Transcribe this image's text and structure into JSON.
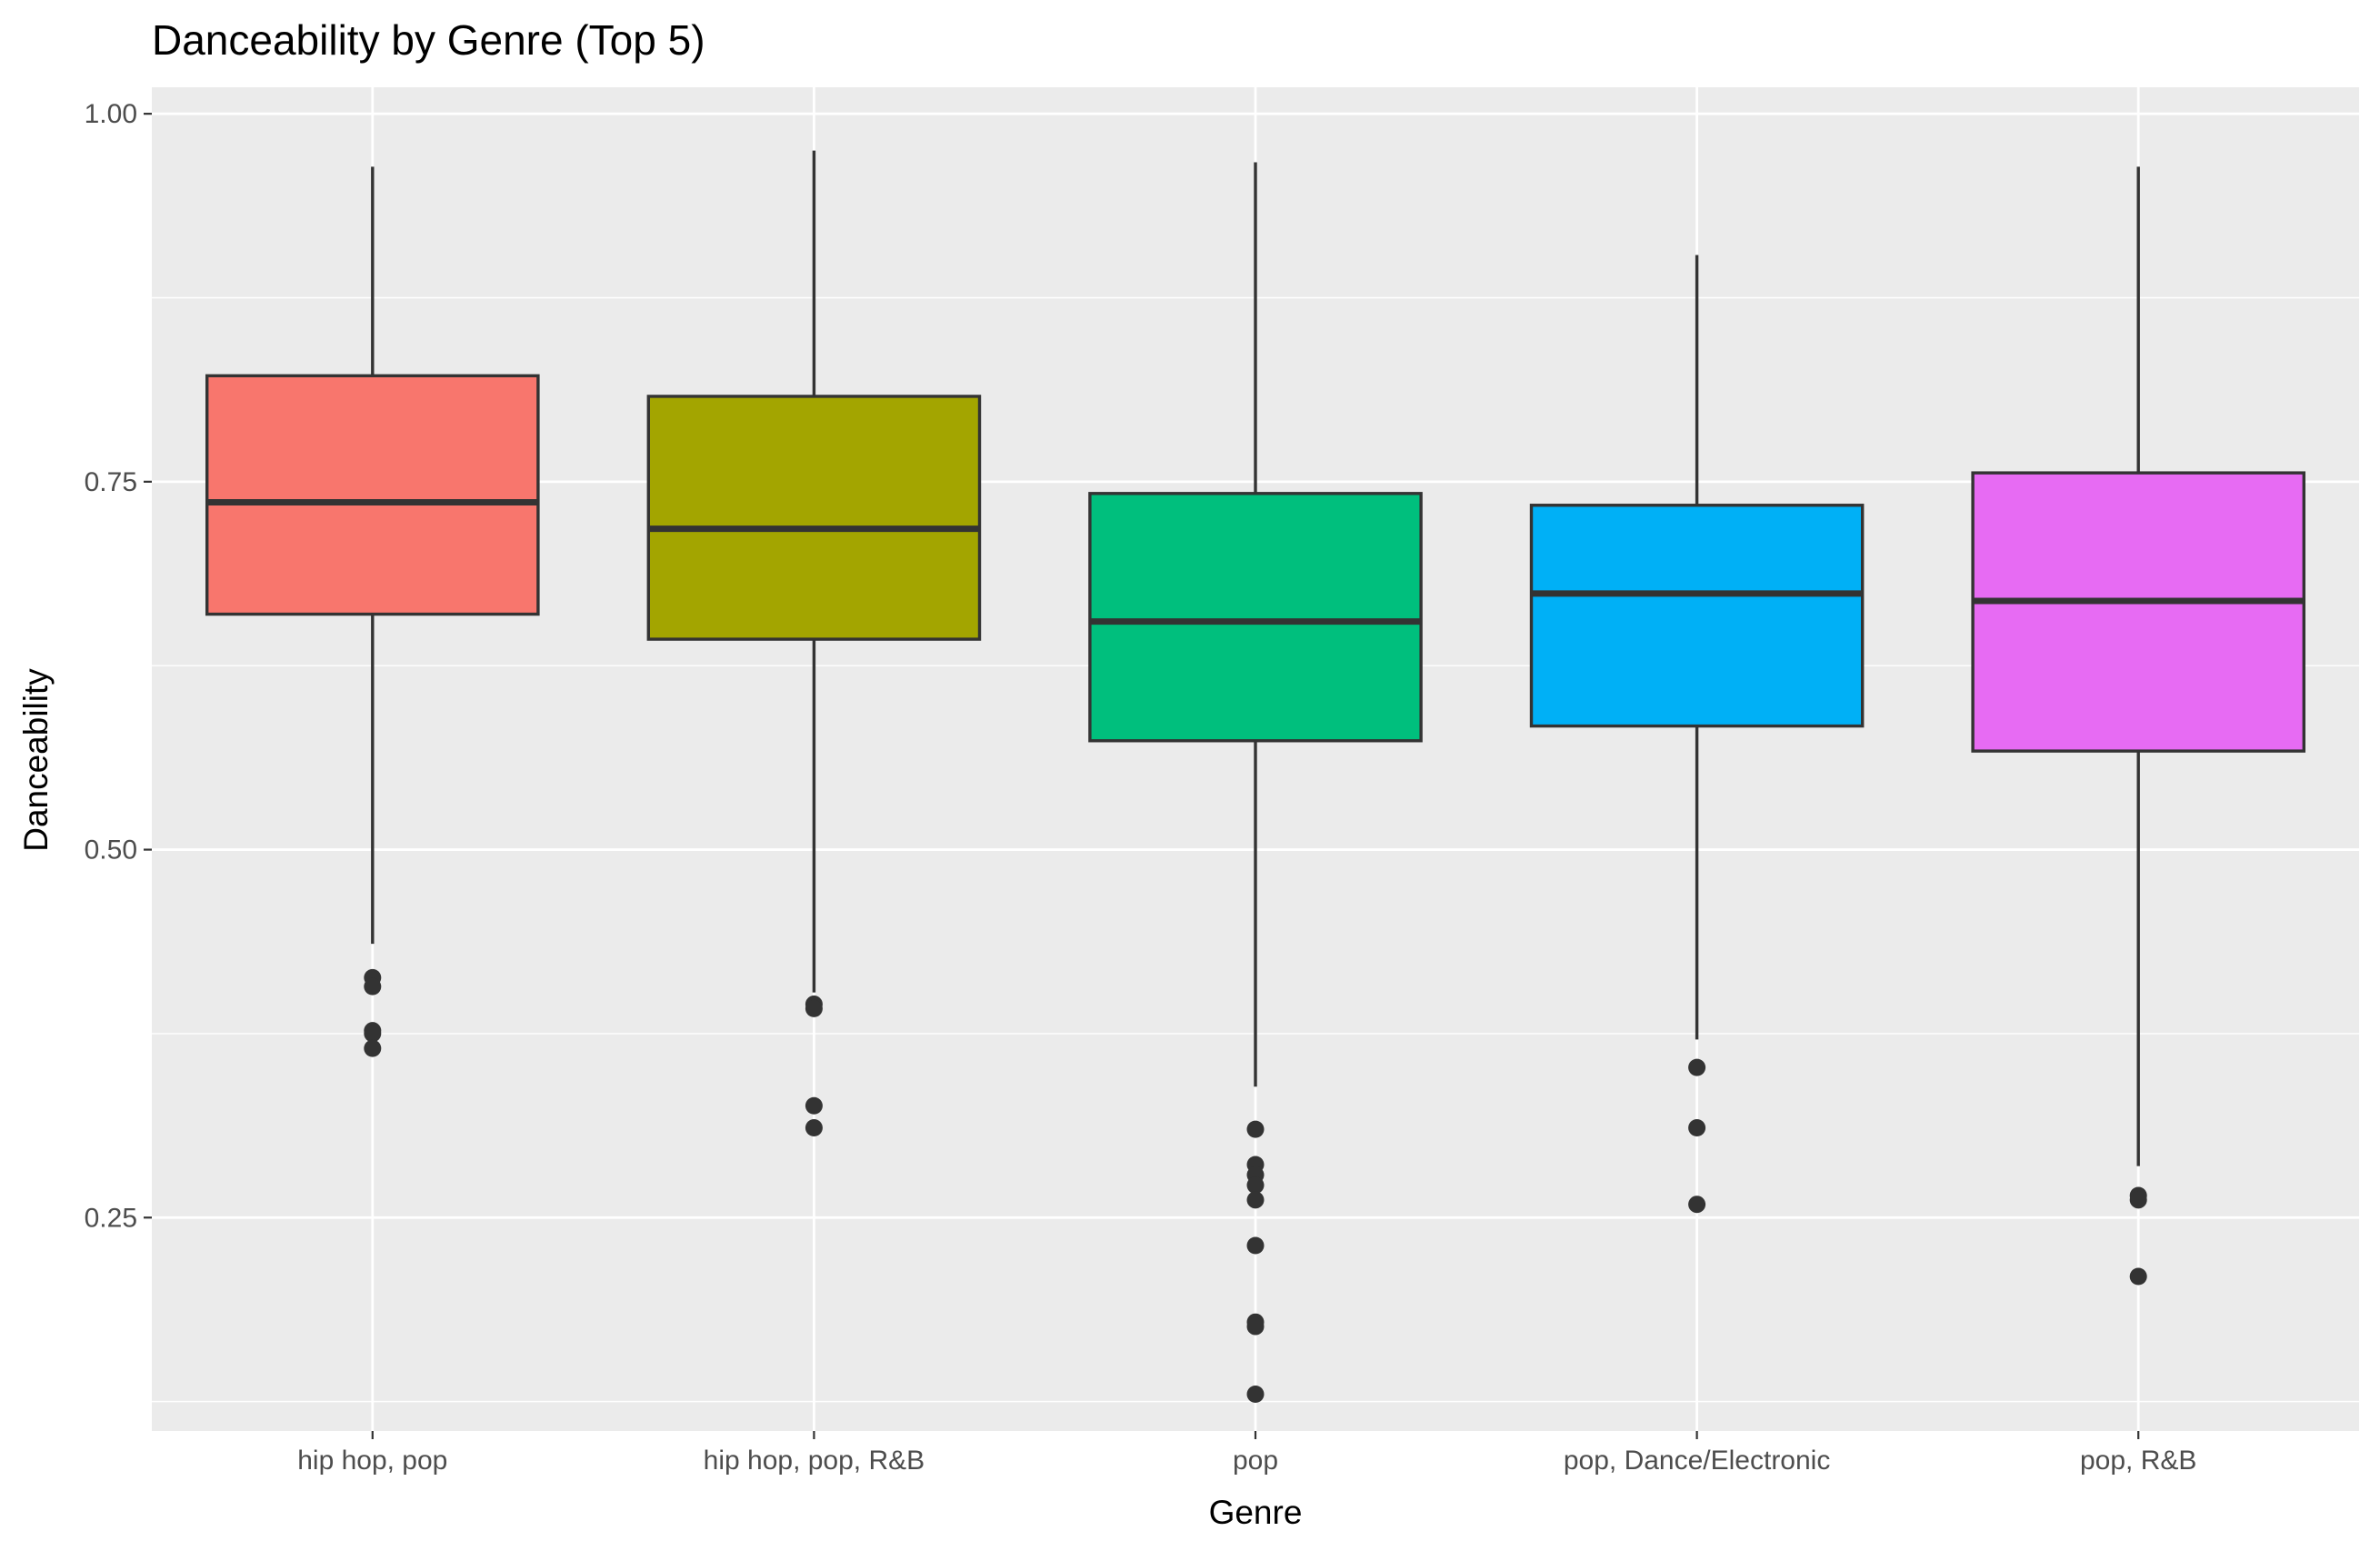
{
  "chart_data": {
    "type": "boxplot",
    "title": "Danceability by Genre (Top 5)",
    "xlabel": "Genre",
    "ylabel": "Danceability",
    "ylim": [
      0.105,
      1.018
    ],
    "y_ticks": [
      0.25,
      0.5,
      0.75,
      1.0
    ],
    "y_tick_labels": [
      "0.25",
      "0.50",
      "0.75",
      "1.00"
    ],
    "grid": true,
    "legend": "none",
    "categories": [
      "hip hop, pop",
      "hip hop, pop, R&B",
      "pop",
      "pop, Dance/Electronic",
      "pop, R&B"
    ],
    "boxes": [
      {
        "category": "hip hop, pop",
        "color": "#F8766D",
        "whisker_low": 0.436,
        "q1": 0.66,
        "median": 0.736,
        "q3": 0.822,
        "whisker_high": 0.964,
        "outliers": [
          0.413,
          0.407,
          0.377,
          0.375,
          0.365
        ]
      },
      {
        "category": "hip hop, pop, R&B",
        "color": "#A3A500",
        "whisker_low": 0.403,
        "q1": 0.643,
        "median": 0.718,
        "q3": 0.808,
        "whisker_high": 0.975,
        "outliers": [
          0.395,
          0.392,
          0.326,
          0.311
        ]
      },
      {
        "category": "pop",
        "color": "#00BF7D",
        "whisker_low": 0.339,
        "q1": 0.574,
        "median": 0.655,
        "q3": 0.742,
        "whisker_high": 0.967,
        "outliers": [
          0.31,
          0.286,
          0.279,
          0.272,
          0.262,
          0.231,
          0.179,
          0.176,
          0.13
        ]
      },
      {
        "category": "pop, Dance/Electronic",
        "color": "#00B0F6",
        "whisker_low": 0.371,
        "q1": 0.584,
        "median": 0.674,
        "q3": 0.734,
        "whisker_high": 0.904,
        "outliers": [
          0.352,
          0.311,
          0.259
        ]
      },
      {
        "category": "pop, R&B",
        "color": "#E76BF3",
        "whisker_low": 0.285,
        "q1": 0.567,
        "median": 0.669,
        "q3": 0.756,
        "whisker_high": 0.964,
        "outliers": [
          0.265,
          0.262,
          0.21
        ]
      }
    ],
    "colors": {
      "panel_bg": "#EBEBEB",
      "grid_major": "#FFFFFF",
      "box_border": "#333333",
      "tick_text": "#4D4D4D"
    }
  }
}
